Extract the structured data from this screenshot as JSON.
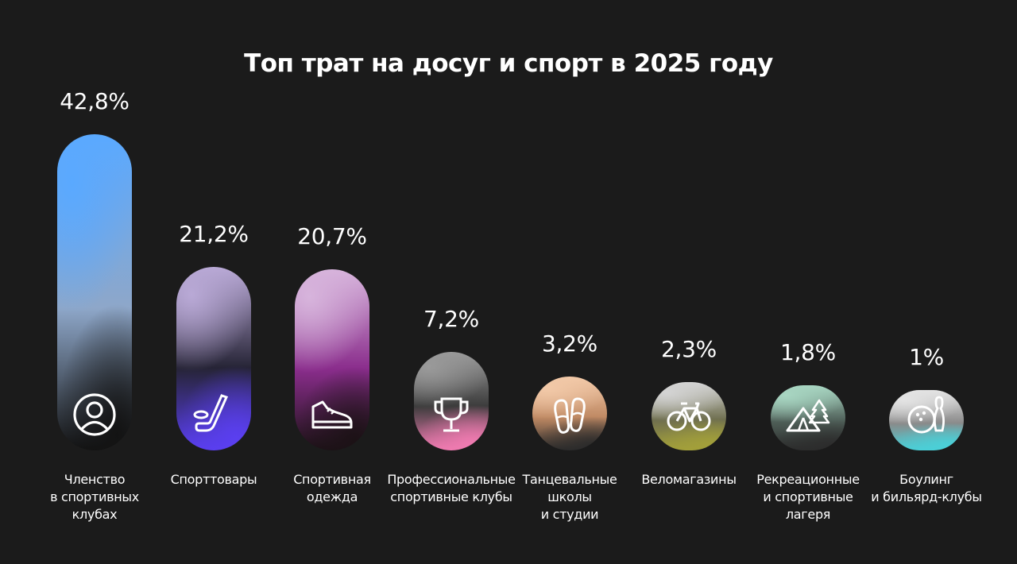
{
  "chart_data": {
    "type": "bar",
    "title": "Топ трат на досуг и спорт в 2025 году",
    "categories": [
      "Членство\nв спортивных\nклубах",
      "Спорттовары",
      "Спортивная\nодежда",
      "Профессиональные\nспортивные клубы",
      "Танцевальные\nшколы\nи студии",
      "Веломагазины",
      "Рекреационные\nи спортивные\nлагеря",
      "Боулинг\nи бильярд-клубы"
    ],
    "values": [
      42.8,
      21.2,
      20.7,
      7.2,
      3.2,
      2.3,
      1.8,
      1.0
    ],
    "value_labels": [
      "42,8%",
      "21,2%",
      "20,7%",
      "7,2%",
      "3,2%",
      "2,3%",
      "1,8%",
      "1%"
    ],
    "icons": [
      "person-icon",
      "hockey-stick-icon",
      "sneaker-icon",
      "trophy-icon",
      "pointe-shoes-icon",
      "bicycle-icon",
      "tent-icon",
      "bowling-icon"
    ],
    "colors": [
      [
        "#5aa9ff",
        "#8ea7c9",
        "#131313"
      ],
      [
        "#b9a9d6",
        "#262436",
        "#5a3ff0"
      ],
      [
        "#d7b4dc",
        "#8a2d8c",
        "#1c1216"
      ],
      [
        "#9a9a9a",
        "#3c3c3c",
        "#f07bb1"
      ],
      [
        "#f2c9a8",
        "#c08a64",
        "#2b2b2b"
      ],
      [
        "#d4d4d4",
        "#6f6f4f",
        "#a3a03a"
      ],
      [
        "#a8d6c2",
        "#4f5f58",
        "#2c2c2c"
      ],
      [
        "#e4e4e4",
        "#8a8a8a",
        "#4ad0d8"
      ]
    ]
  }
}
